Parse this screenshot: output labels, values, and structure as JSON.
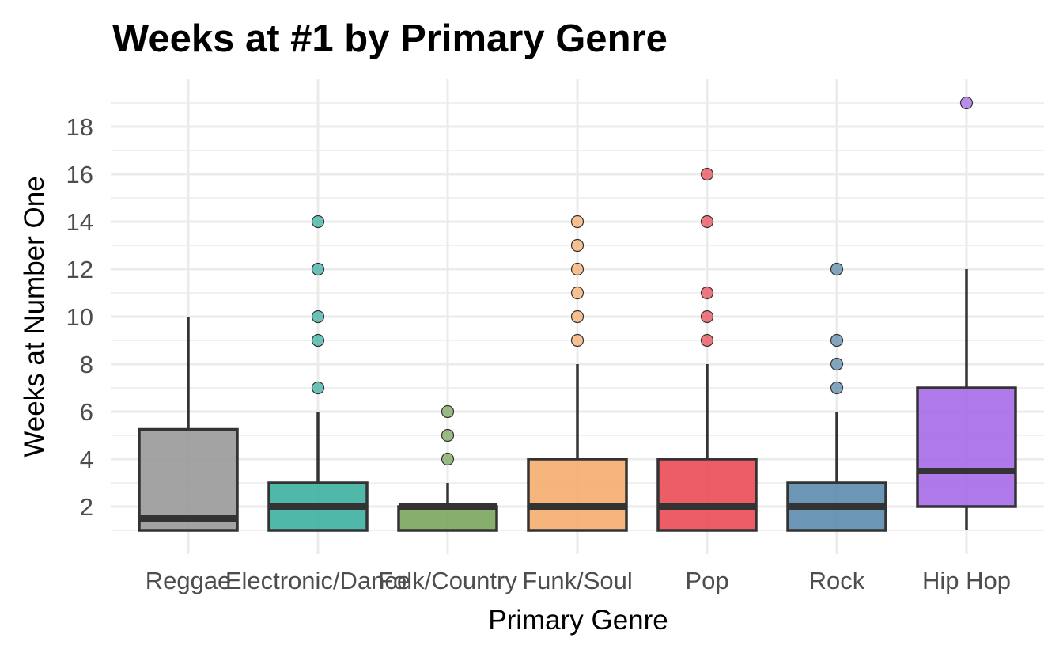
{
  "chart_data": {
    "type": "boxplot",
    "title": "Weeks at #1 by Primary Genre",
    "xlabel": "Primary Genre",
    "ylabel": "Weeks at Number One",
    "ylim": [
      0.0,
      20.0
    ],
    "yticks": [
      2,
      4,
      6,
      8,
      10,
      12,
      14,
      16,
      18
    ],
    "grid": true,
    "legend": "none",
    "categories": [
      "Reggae",
      "Electronic/Dance",
      "Folk/Country",
      "Funk/Soul",
      "Pop",
      "Rock",
      "Hip Hop"
    ],
    "series": [
      {
        "category": "Reggae",
        "color": "#999999",
        "lower_whisker": 1,
        "q1": 1,
        "median": 1.5,
        "q3": 5.25,
        "upper_whisker": 10,
        "outliers": []
      },
      {
        "category": "Electronic/Dance",
        "color": "#3db0a0",
        "lower_whisker": 1,
        "q1": 1,
        "median": 2,
        "q3": 3,
        "upper_whisker": 6,
        "outliers": [
          7,
          9,
          10,
          12,
          14
        ]
      },
      {
        "category": "Folk/Country",
        "color": "#7ba55e",
        "lower_whisker": 1,
        "q1": 1,
        "median": 2,
        "q3": 2,
        "upper_whisker": 3,
        "outliers": [
          4,
          5,
          6
        ]
      },
      {
        "category": "Funk/Soul",
        "color": "#f5ad6f",
        "lower_whisker": 1,
        "q1": 1,
        "median": 2,
        "q3": 4,
        "upper_whisker": 8,
        "outliers": [
          9,
          10,
          11,
          12,
          13,
          14
        ]
      },
      {
        "category": "Pop",
        "color": "#ea4b58",
        "lower_whisker": 1,
        "q1": 1,
        "median": 2,
        "q3": 4,
        "upper_whisker": 8,
        "outliers": [
          9,
          10,
          11,
          14,
          16
        ]
      },
      {
        "category": "Rock",
        "color": "#5b8bad",
        "lower_whisker": 1,
        "q1": 1,
        "median": 2,
        "q3": 3,
        "upper_whisker": 6,
        "outliers": [
          7,
          8,
          9,
          12
        ]
      },
      {
        "category": "Hip Hop",
        "color": "#a66ae7",
        "lower_whisker": 1,
        "q1": 2,
        "median": 3.5,
        "q3": 7,
        "upper_whisker": 12,
        "outliers": [
          19
        ]
      }
    ]
  }
}
